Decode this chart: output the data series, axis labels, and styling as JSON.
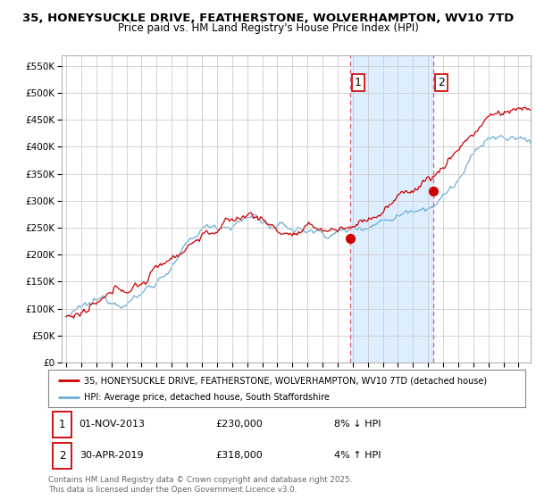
{
  "title_line1": "35, HONEYSUCKLE DRIVE, FEATHERSTONE, WOLVERHAMPTON, WV10 7TD",
  "title_line2": "Price paid vs. HM Land Registry's House Price Index (HPI)",
  "ytick_values": [
    0,
    50000,
    100000,
    150000,
    200000,
    250000,
    300000,
    350000,
    400000,
    450000,
    500000,
    550000
  ],
  "ylim": [
    0,
    570000
  ],
  "xlim_start": 1994.7,
  "xlim_end": 2025.8,
  "hpi_color": "#6baed6",
  "price_color": "#cc0000",
  "marker1_x": 2013.833,
  "marker1_y": 230000,
  "marker2_x": 2019.333,
  "marker2_y": 318000,
  "marker1_label": "1",
  "marker2_label": "2",
  "legend_line1": "35, HONEYSUCKLE DRIVE, FEATHERSTONE, WOLVERHAMPTON, WV10 7TD (detached house)",
  "legend_line2": "HPI: Average price, detached house, South Staffordshire",
  "footer_text": "Contains HM Land Registry data © Crown copyright and database right 2025.\nThis data is licensed under the Open Government Licence v3.0.",
  "background_color": "#ffffff",
  "plot_bg_color": "#ffffff",
  "grid_color": "#cccccc",
  "vline1_x": 2013.833,
  "vline2_x": 2019.333,
  "vline_color": "#e06060",
  "span_color": "#ddeeff"
}
